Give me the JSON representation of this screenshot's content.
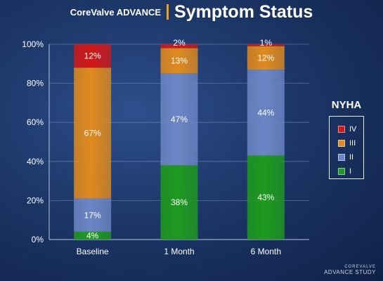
{
  "header": {
    "brand": "CoreValve ADVANCE",
    "title": "Symptom Status"
  },
  "colors": {
    "IV": "#d01818",
    "III": "#e08a1e",
    "II": "#6b86c4",
    "I": "#1e9a1e"
  },
  "chart_data": {
    "type": "bar",
    "stacked": true,
    "title": "Symptom Status",
    "xlabel": "",
    "ylabel": "",
    "categories": [
      "Baseline",
      "1 Month",
      "6 Month"
    ],
    "ylim": [
      0,
      100
    ],
    "yticks": [
      "0%",
      "20%",
      "40%",
      "60%",
      "80%",
      "100%"
    ],
    "grid": true,
    "legend_title": "NYHA",
    "legend_position": "right",
    "series": [
      {
        "name": "I",
        "values": [
          4,
          38,
          43
        ],
        "labels": [
          "4%",
          "38%",
          "43%"
        ]
      },
      {
        "name": "II",
        "values": [
          17,
          47,
          44
        ],
        "labels": [
          "17%",
          "47%",
          "44%"
        ]
      },
      {
        "name": "III",
        "values": [
          67,
          13,
          12
        ],
        "labels": [
          "67%",
          "13%",
          "12%"
        ]
      },
      {
        "name": "IV",
        "values": [
          12,
          2,
          1
        ],
        "labels": [
          "12%",
          "2%",
          "1%"
        ]
      }
    ]
  },
  "footer": {
    "top": "COREVALVE",
    "bottom": "ADVANCE STUDY"
  }
}
